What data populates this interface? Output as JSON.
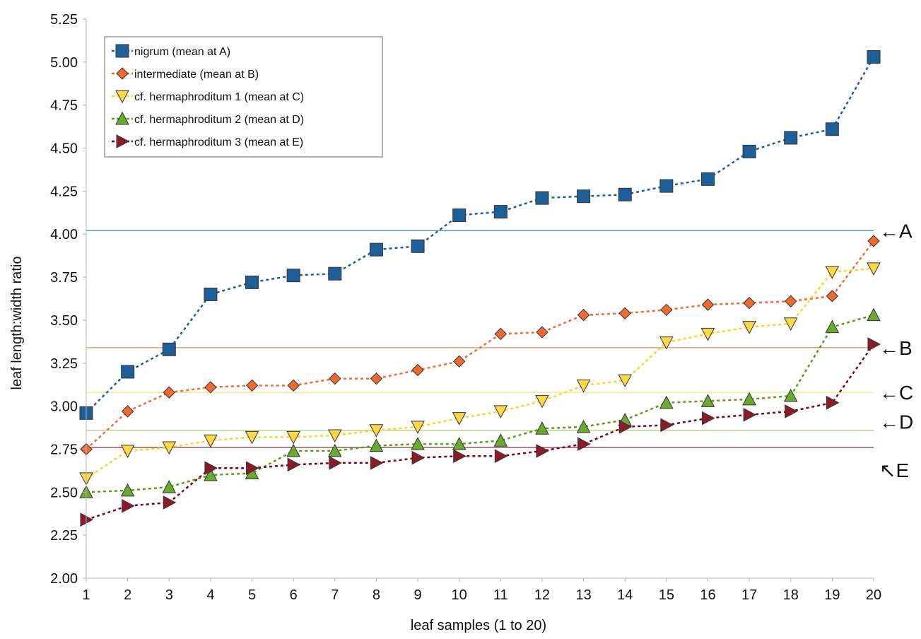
{
  "chart_data": {
    "type": "line",
    "title": "",
    "xlabel": "leaf samples (1 to 20)",
    "ylabel": "leaf length:width ratio",
    "x": [
      1,
      2,
      3,
      4,
      5,
      6,
      7,
      8,
      9,
      10,
      11,
      12,
      13,
      14,
      15,
      16,
      17,
      18,
      19,
      20
    ],
    "xlim": [
      1,
      20
    ],
    "ylim": [
      2.0,
      5.25
    ],
    "yticks": [
      "2.00",
      "2.25",
      "2.50",
      "2.75",
      "3.00",
      "3.25",
      "3.50",
      "3.75",
      "4.00",
      "4.25",
      "4.50",
      "4.75",
      "5.00",
      "5.25"
    ],
    "xticks": [
      "1",
      "2",
      "3",
      "4",
      "5",
      "6",
      "7",
      "8",
      "9",
      "10",
      "11",
      "12",
      "13",
      "14",
      "15",
      "16",
      "17",
      "18",
      "19",
      "20"
    ],
    "grid": false,
    "legend_position": "top-left",
    "series": [
      {
        "name": "nigrum (mean at A)",
        "marker": "square",
        "color": "#1f5f99",
        "line_color": "#1f5f99",
        "values": [
          2.96,
          3.2,
          3.33,
          3.65,
          3.72,
          3.76,
          3.77,
          3.91,
          3.93,
          4.11,
          4.13,
          4.21,
          4.22,
          4.23,
          4.28,
          4.32,
          4.48,
          4.56,
          4.61,
          5.03
        ]
      },
      {
        "name": "intermediate (mean at B)",
        "marker": "diamond",
        "color": "#f26a2e",
        "line_color": "#f26a2e",
        "values": [
          2.75,
          2.97,
          3.08,
          3.11,
          3.12,
          3.12,
          3.16,
          3.16,
          3.21,
          3.26,
          3.42,
          3.43,
          3.53,
          3.54,
          3.56,
          3.59,
          3.6,
          3.61,
          3.64,
          3.96
        ]
      },
      {
        "name": "cf. hermaphroditum 1 (mean at C)",
        "marker": "triangle-down",
        "color": "#ffd945",
        "line_color": "#ffd320",
        "values": [
          2.58,
          2.74,
          2.76,
          2.8,
          2.82,
          2.82,
          2.83,
          2.86,
          2.88,
          2.93,
          2.97,
          3.03,
          3.12,
          3.15,
          3.37,
          3.42,
          3.46,
          3.48,
          3.78,
          3.8
        ]
      },
      {
        "name": "cf. hermaphroditum 2 (mean at D)",
        "marker": "triangle-up",
        "color": "#6aaa2e",
        "line_color": "#579d1c",
        "values": [
          2.5,
          2.51,
          2.53,
          2.6,
          2.61,
          2.74,
          2.74,
          2.77,
          2.78,
          2.78,
          2.8,
          2.87,
          2.88,
          2.92,
          3.02,
          3.03,
          3.04,
          3.06,
          3.46,
          3.53
        ]
      },
      {
        "name": "cf. hermaphroditum 3 (mean at E)",
        "marker": "triangle-right",
        "color": "#8b1a2b",
        "line_color": "#7e0021",
        "values": [
          2.34,
          2.42,
          2.44,
          2.64,
          2.64,
          2.66,
          2.67,
          2.67,
          2.7,
          2.71,
          2.71,
          2.74,
          2.78,
          2.88,
          2.89,
          2.93,
          2.95,
          2.97,
          3.02,
          3.36
        ]
      }
    ],
    "mean_lines": [
      {
        "label": "A",
        "value": 4.02,
        "color": "#3a8fc4",
        "arrow": "←"
      },
      {
        "label": "B",
        "value": 3.34,
        "color": "#f08a58",
        "arrow": "←"
      },
      {
        "label": "C",
        "value": 3.08,
        "color": "#f5e27a",
        "arrow": "←"
      },
      {
        "label": "D",
        "value": 2.86,
        "color": "#9fc76a",
        "arrow": "←"
      },
      {
        "label": "E",
        "value": 2.76,
        "color": "#8b3040",
        "arrow": "↖"
      }
    ]
  }
}
